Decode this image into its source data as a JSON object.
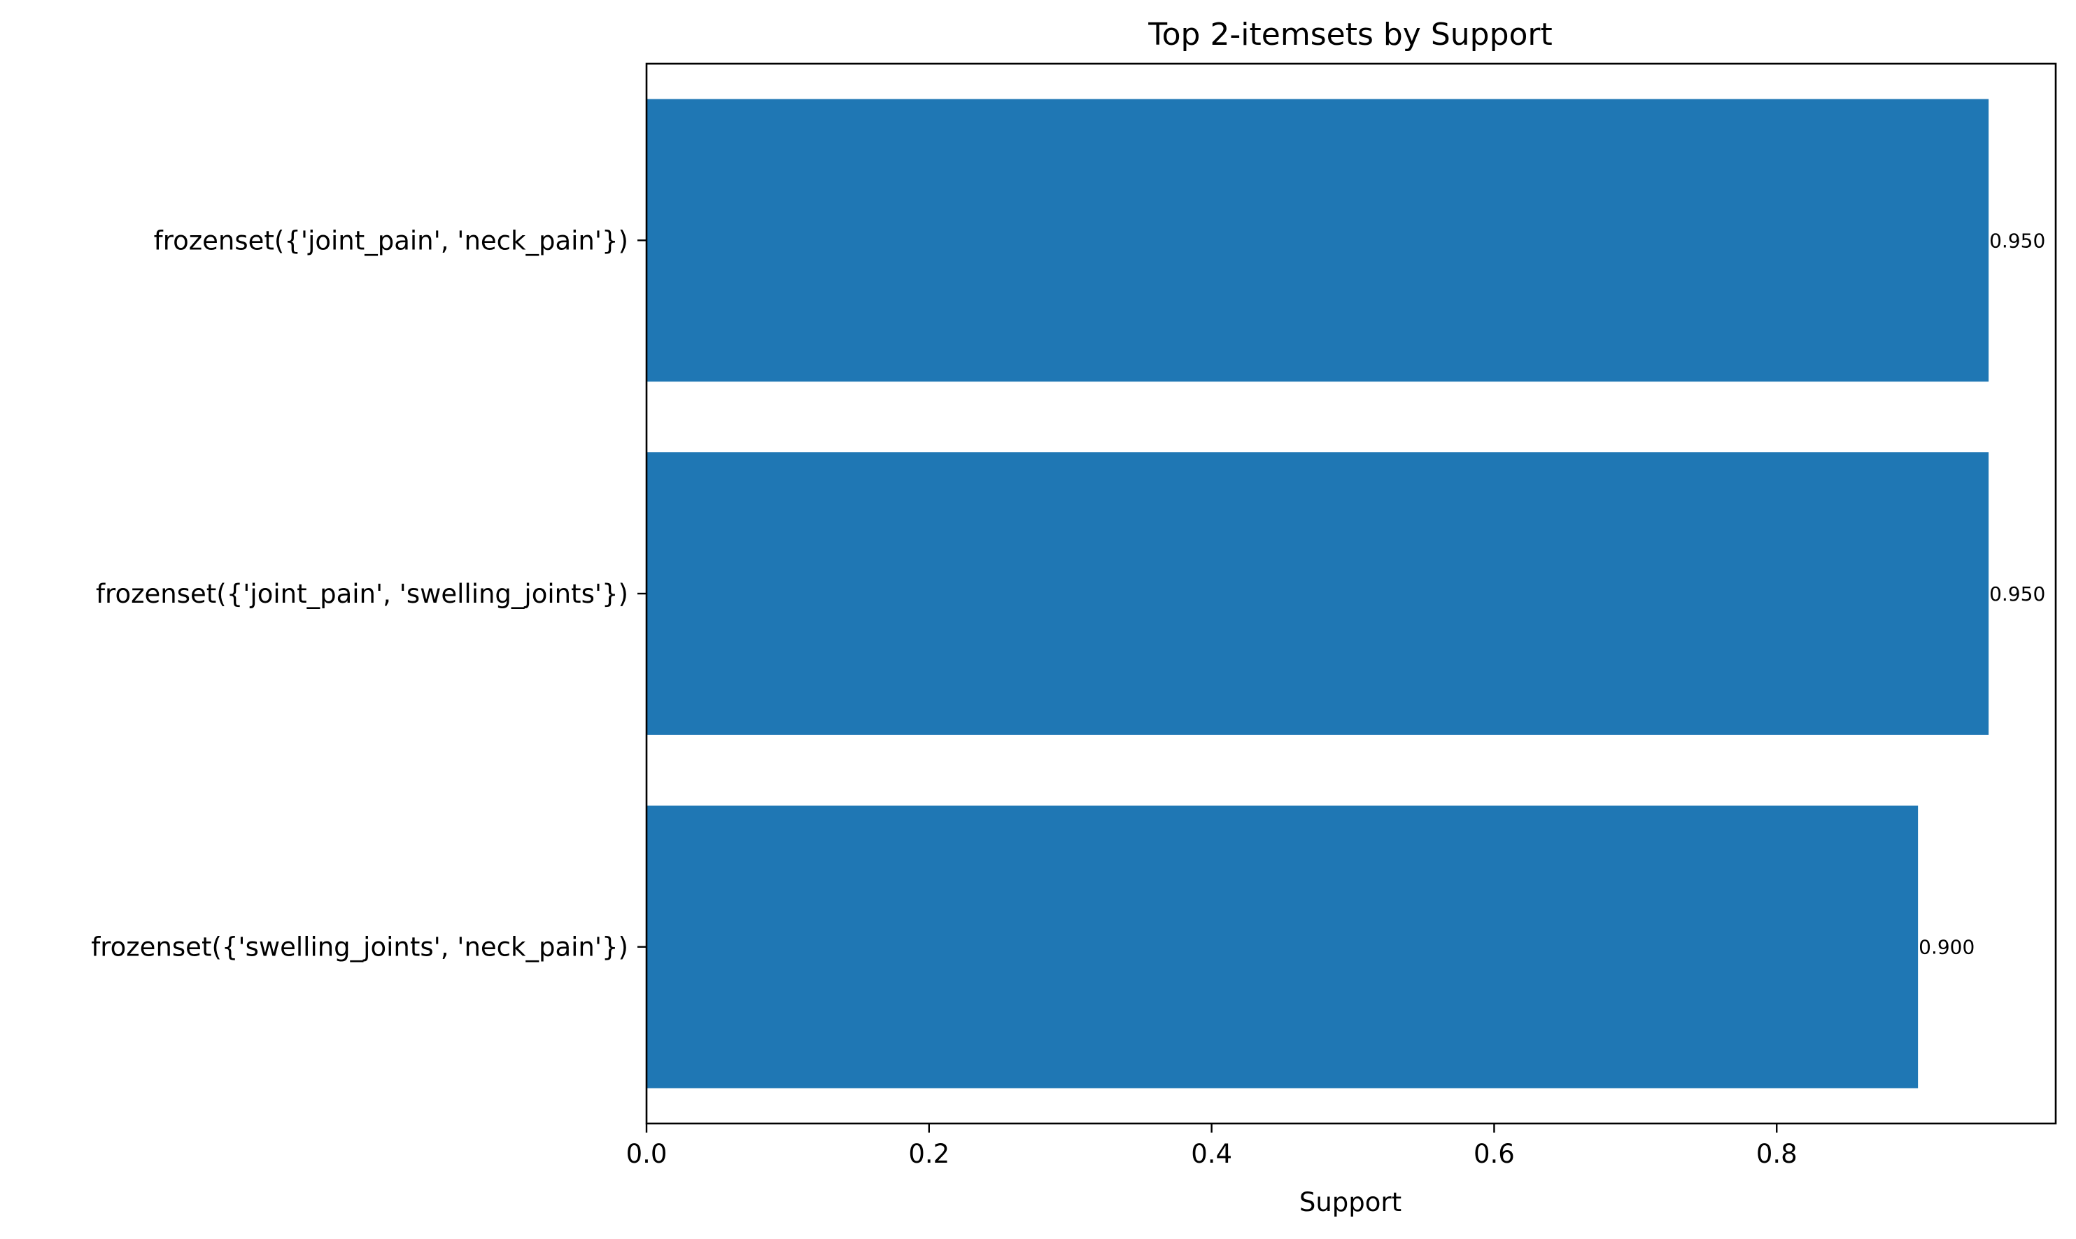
{
  "chart_data": {
    "type": "bar",
    "orientation": "horizontal",
    "title": "Top 2-itemsets by Support",
    "xlabel": "Support",
    "ylabel": "",
    "categories": [
      "frozenset({'joint_pain', 'neck_pain'})",
      "frozenset({'joint_pain', 'swelling_joints'})",
      "frozenset({'swelling_joints', 'neck_pain'})"
    ],
    "values": [
      0.95,
      0.95,
      0.9
    ],
    "value_labels": [
      "0.950",
      "0.950",
      "0.900"
    ],
    "xlim": [
      0,
      0.9975
    ],
    "xticks": [
      0.0,
      0.2,
      0.4,
      0.6,
      0.8
    ],
    "xtick_labels": [
      "0.0",
      "0.2",
      "0.4",
      "0.6",
      "0.8"
    ],
    "grid": false,
    "bar_color": "#1f77b4",
    "axis_color": "#000000"
  }
}
